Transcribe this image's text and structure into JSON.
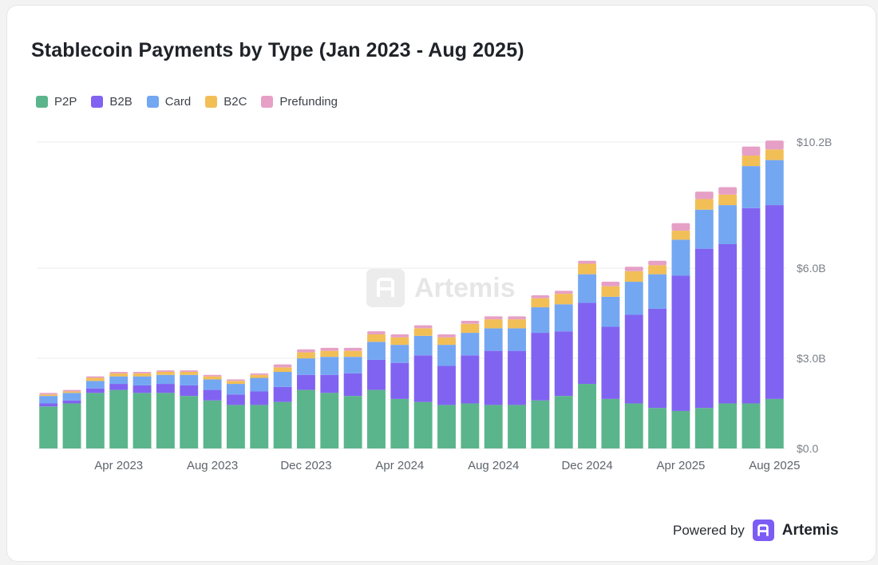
{
  "card": {
    "title": "Stablecoin Payments by Type (Jan 2023 - Aug 2025)"
  },
  "watermark": {
    "text": "Artemis"
  },
  "footer": {
    "powered_by": "Powered by",
    "brand": "Artemis"
  },
  "colors": {
    "P2P": "#5bb58c",
    "B2B": "#8163f2",
    "Card": "#74a7f2",
    "B2C": "#f2bf57",
    "Prefunding": "#e6a0c6"
  },
  "chart_data": {
    "type": "bar",
    "stacked": true,
    "months": [
      "Jan 2023",
      "Feb 2023",
      "Mar 2023",
      "Apr 2023",
      "May 2023",
      "Jun 2023",
      "Jul 2023",
      "Aug 2023",
      "Sep 2023",
      "Oct 2023",
      "Nov 2023",
      "Dec 2023",
      "Jan 2024",
      "Feb 2024",
      "Mar 2024",
      "Apr 2024",
      "May 2024",
      "Jun 2024",
      "Jul 2024",
      "Aug 2024",
      "Sep 2024",
      "Oct 2024",
      "Nov 2024",
      "Dec 2024",
      "Jan 2025",
      "Feb 2025",
      "Mar 2025",
      "Apr 2025",
      "May 2025",
      "Jun 2025",
      "Jul 2025",
      "Aug 2025"
    ],
    "x_tick_labels": [
      {
        "index": 3,
        "label": "Apr 2023"
      },
      {
        "index": 7,
        "label": "Aug 2023"
      },
      {
        "index": 11,
        "label": "Dec 2023"
      },
      {
        "index": 15,
        "label": "Apr 2024"
      },
      {
        "index": 19,
        "label": "Aug 2024"
      },
      {
        "index": 23,
        "label": "Dec 2024"
      },
      {
        "index": 27,
        "label": "Apr 2025"
      },
      {
        "index": 31,
        "label": "Aug 2025"
      }
    ],
    "y_ticks": [
      {
        "value": 0,
        "label": "$0.0"
      },
      {
        "value": 3.0,
        "label": "$3.0B"
      },
      {
        "value": 6.0,
        "label": "$6.0B"
      },
      {
        "value": 10.2,
        "label": "$10.2B"
      }
    ],
    "y_unit": "$B",
    "ylim": [
      0,
      10.2
    ],
    "grid": true,
    "legend_position": "top-left",
    "series": [
      {
        "name": "P2P",
        "values": [
          1.4,
          1.5,
          1.85,
          1.95,
          1.85,
          1.85,
          1.75,
          1.6,
          1.45,
          1.45,
          1.55,
          1.95,
          1.85,
          1.75,
          1.95,
          1.65,
          1.55,
          1.45,
          1.5,
          1.45,
          1.45,
          1.6,
          1.75,
          2.15,
          1.65,
          1.5,
          1.35,
          1.25,
          1.35,
          1.5,
          1.5,
          1.65
        ]
      },
      {
        "name": "B2B",
        "values": [
          0.1,
          0.1,
          0.15,
          0.2,
          0.25,
          0.3,
          0.35,
          0.35,
          0.35,
          0.45,
          0.5,
          0.5,
          0.6,
          0.75,
          1.0,
          1.2,
          1.55,
          1.3,
          1.6,
          1.8,
          1.8,
          2.25,
          2.15,
          2.7,
          2.4,
          2.95,
          3.3,
          4.5,
          5.3,
          5.3,
          6.5,
          6.45
        ]
      },
      {
        "name": "Card",
        "values": [
          0.25,
          0.25,
          0.25,
          0.25,
          0.3,
          0.3,
          0.35,
          0.35,
          0.35,
          0.45,
          0.5,
          0.55,
          0.6,
          0.55,
          0.6,
          0.6,
          0.65,
          0.7,
          0.75,
          0.75,
          0.75,
          0.85,
          0.9,
          0.95,
          1.0,
          1.1,
          1.15,
          1.2,
          1.3,
          1.3,
          1.4,
          1.5
        ]
      },
      {
        "name": "B2C",
        "values": [
          0.05,
          0.05,
          0.1,
          0.1,
          0.1,
          0.1,
          0.1,
          0.1,
          0.1,
          0.1,
          0.15,
          0.2,
          0.2,
          0.2,
          0.25,
          0.25,
          0.25,
          0.25,
          0.3,
          0.3,
          0.3,
          0.3,
          0.35,
          0.35,
          0.35,
          0.35,
          0.3,
          0.3,
          0.35,
          0.35,
          0.35,
          0.35
        ]
      },
      {
        "name": "Prefunding",
        "values": [
          0.05,
          0.05,
          0.05,
          0.05,
          0.05,
          0.05,
          0.05,
          0.05,
          0.05,
          0.05,
          0.1,
          0.1,
          0.1,
          0.1,
          0.1,
          0.1,
          0.1,
          0.1,
          0.1,
          0.1,
          0.1,
          0.1,
          0.1,
          0.1,
          0.15,
          0.15,
          0.15,
          0.25,
          0.25,
          0.25,
          0.3,
          0.3
        ]
      }
    ]
  }
}
